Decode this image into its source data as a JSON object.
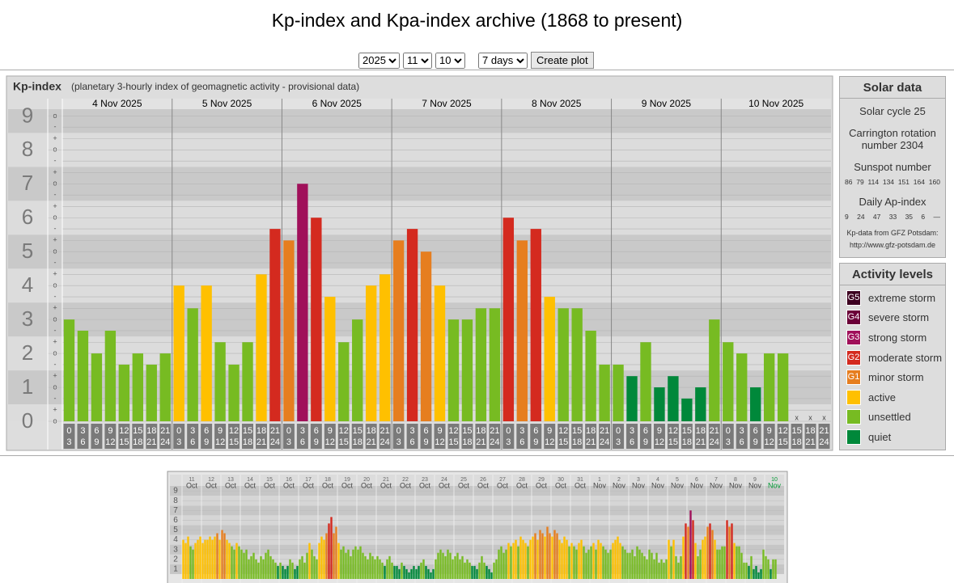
{
  "header": {
    "title": "Kp-index and Kpa-index archive (1868 to present)"
  },
  "controls": {
    "year": "2025",
    "month": "11",
    "day": "10",
    "range": "7 days",
    "button": "Create plot"
  },
  "chart_data": [
    {
      "type": "bar",
      "title": "Kp-index",
      "subtitle": "(planetary 3-hourly index of geomagnetic activity - provisional data)",
      "days": [
        "4 Nov 2025",
        "5 Nov 2025",
        "6 Nov 2025",
        "7 Nov 2025",
        "8 Nov 2025",
        "9 Nov 2025",
        "10 Nov 2025"
      ],
      "hours_from": [
        "0",
        "3",
        "6",
        "9",
        "12",
        "15",
        "18",
        "21"
      ],
      "hours_to": [
        "3",
        "6",
        "9",
        "12",
        "15",
        "18",
        "21",
        "24"
      ],
      "values": [
        3,
        2.67,
        2,
        2.67,
        1.67,
        2,
        1.67,
        2,
        4,
        3.33,
        4,
        2.33,
        1.67,
        2.33,
        4.33,
        5.67,
        5.33,
        7,
        6,
        3.67,
        2.33,
        3,
        4,
        4.33,
        5.33,
        5.67,
        5,
        4,
        3,
        3,
        3.33,
        3.33,
        6,
        5.33,
        5.67,
        3.67,
        3.33,
        3.33,
        2.67,
        1.67,
        1.67,
        1.33,
        2.33,
        1,
        1.33,
        0.67,
        1,
        3,
        2.33,
        2,
        1,
        2,
        2,
        null,
        null,
        null
      ],
      "colors": [
        "#77bb22",
        "#77bb22",
        "#77bb22",
        "#77bb22",
        "#77bb22",
        "#77bb22",
        "#77bb22",
        "#77bb22",
        "#ffc000",
        "#77bb22",
        "#ffc000",
        "#77bb22",
        "#77bb22",
        "#77bb22",
        "#ffc000",
        "#d42a1f",
        "#e67e1f",
        "#a0105a",
        "#d42a1f",
        "#ffc000",
        "#77bb22",
        "#77bb22",
        "#ffc000",
        "#ffc000",
        "#e67e1f",
        "#d42a1f",
        "#e67e1f",
        "#ffc000",
        "#77bb22",
        "#77bb22",
        "#77bb22",
        "#77bb22",
        "#d42a1f",
        "#e67e1f",
        "#d42a1f",
        "#ffc000",
        "#77bb22",
        "#77bb22",
        "#77bb22",
        "#77bb22",
        "#77bb22",
        "#00883a",
        "#77bb22",
        "#00883a",
        "#00883a",
        "#00883a",
        "#00883a",
        "#77bb22",
        "#77bb22",
        "#77bb22",
        "#00883a",
        "#77bb22",
        "#77bb22",
        null,
        null,
        null
      ],
      "missing_label": "x",
      "ylim": [
        0,
        9.2
      ],
      "yticks": [
        0,
        1,
        2,
        3,
        4,
        5,
        6,
        7,
        8,
        9
      ],
      "minor_yticks": [
        {
          "value": 0,
          "label": "o"
        },
        {
          "value": 0.33,
          "label": "+"
        },
        {
          "value": 0.67,
          "label": "-"
        },
        {
          "value": 1,
          "label": "o"
        },
        {
          "value": 1.33,
          "label": "+"
        },
        {
          "value": 1.67,
          "label": "-"
        },
        {
          "value": 2,
          "label": "o"
        },
        {
          "value": 2.33,
          "label": "+"
        },
        {
          "value": 2.67,
          "label": "-"
        },
        {
          "value": 3,
          "label": "o"
        },
        {
          "value": 3.33,
          "label": "+"
        },
        {
          "value": 3.67,
          "label": "-"
        },
        {
          "value": 4,
          "label": "o"
        },
        {
          "value": 4.33,
          "label": "+"
        },
        {
          "value": 4.67,
          "label": "-"
        },
        {
          "value": 5,
          "label": "o"
        },
        {
          "value": 5.33,
          "label": "+"
        },
        {
          "value": 5.67,
          "label": "-"
        },
        {
          "value": 6,
          "label": "o"
        },
        {
          "value": 6.33,
          "label": "+"
        },
        {
          "value": 6.67,
          "label": "-"
        },
        {
          "value": 7,
          "label": "o"
        },
        {
          "value": 7.33,
          "label": "+"
        },
        {
          "value": 7.67,
          "label": "-"
        },
        {
          "value": 8,
          "label": "o"
        },
        {
          "value": 8.33,
          "label": "+"
        },
        {
          "value": 8.67,
          "label": "-"
        },
        {
          "value": 9,
          "label": "o"
        }
      ]
    },
    {
      "type": "bar",
      "days": [
        {
          "day": "11",
          "month": "Oct"
        },
        {
          "day": "12",
          "month": "Oct"
        },
        {
          "day": "13",
          "month": "Oct"
        },
        {
          "day": "14",
          "month": "Oct"
        },
        {
          "day": "15",
          "month": "Oct"
        },
        {
          "day": "16",
          "month": "Oct"
        },
        {
          "day": "17",
          "month": "Oct"
        },
        {
          "day": "18",
          "month": "Oct"
        },
        {
          "day": "19",
          "month": "Oct"
        },
        {
          "day": "20",
          "month": "Oct"
        },
        {
          "day": "21",
          "month": "Oct"
        },
        {
          "day": "22",
          "month": "Oct"
        },
        {
          "day": "23",
          "month": "Oct"
        },
        {
          "day": "24",
          "month": "Oct"
        },
        {
          "day": "25",
          "month": "Oct"
        },
        {
          "day": "26",
          "month": "Oct"
        },
        {
          "day": "27",
          "month": "Oct"
        },
        {
          "day": "28",
          "month": "Oct"
        },
        {
          "day": "29",
          "month": "Oct"
        },
        {
          "day": "30",
          "month": "Oct"
        },
        {
          "day": "31",
          "month": "Oct"
        },
        {
          "day": "1",
          "month": "Nov"
        },
        {
          "day": "2",
          "month": "Nov"
        },
        {
          "day": "3",
          "month": "Nov"
        },
        {
          "day": "4",
          "month": "Nov"
        },
        {
          "day": "5",
          "month": "Nov"
        },
        {
          "day": "6",
          "month": "Nov"
        },
        {
          "day": "7",
          "month": "Nov"
        },
        {
          "day": "8",
          "month": "Nov"
        },
        {
          "day": "9",
          "month": "Nov"
        },
        {
          "day": "10",
          "month": "Nov"
        }
      ],
      "values": [
        4,
        3.67,
        4.33,
        3.33,
        3,
        3.67,
        4,
        4.33,
        3.67,
        4,
        4,
        4.33,
        4,
        4.33,
        4.67,
        4,
        5,
        4.67,
        4,
        3.67,
        3.33,
        3,
        3.67,
        3.33,
        3,
        2.67,
        3,
        2,
        2.33,
        2.67,
        2,
        1.67,
        2.33,
        2,
        2.67,
        3,
        2.33,
        2,
        1.67,
        1.33,
        1.67,
        1.33,
        1,
        1.33,
        2,
        1.67,
        1,
        1.33,
        2,
        2.33,
        1.67,
        2.67,
        3.67,
        3,
        2.33,
        2,
        3.67,
        4.33,
        4,
        4.67,
        5.67,
        6.33,
        4.67,
        5.33,
        3.67,
        3,
        3.33,
        2.67,
        3,
        2.33,
        3,
        3.33,
        3,
        3.33,
        2.67,
        2.33,
        2,
        2.67,
        2.33,
        2,
        2.33,
        2,
        1.67,
        1.33,
        2,
        2.33,
        1.67,
        1.33,
        1.33,
        1,
        1.67,
        1.33,
        1,
        0.67,
        1,
        1.33,
        1,
        1.33,
        1.67,
        2,
        1.33,
        1,
        0.67,
        1,
        2,
        2.67,
        3,
        2.67,
        2.33,
        3,
        2.67,
        2,
        2.33,
        2.67,
        2,
        2.33,
        1.67,
        2,
        1.67,
        1.33,
        1.33,
        1,
        1.67,
        2.33,
        1.67,
        1.33,
        1,
        0.67,
        1.67,
        2,
        3,
        3.33,
        2.67,
        3,
        3.67,
        3.33,
        3.67,
        4,
        3.33,
        4.33,
        4,
        3.67,
        3.33,
        4,
        4.33,
        4.67,
        4,
        5,
        4.67,
        4.33,
        5.33,
        4.67,
        4.33,
        5,
        4.67,
        4,
        3.67,
        4.33,
        4,
        3.33,
        3.67,
        3.33,
        3,
        3.67,
        4,
        3.33,
        2.67,
        3,
        3.33,
        3.67,
        3,
        4,
        3.67,
        3.33,
        3,
        2.67,
        3,
        3.67,
        4,
        4.33,
        3.67,
        3.33,
        3,
        2.67,
        2.67,
        3,
        2.33,
        3.33,
        3,
        2.67,
        2.33,
        2,
        3,
        2.67,
        2,
        2.67,
        1.67,
        2,
        1.67,
        2,
        4,
        3.33,
        4,
        2.33,
        1.67,
        2.33,
        4.33,
        5.67,
        5.33,
        7,
        6,
        3.67,
        2.33,
        3,
        4,
        4.33,
        5.33,
        5.67,
        5,
        4,
        3,
        3,
        3.33,
        3.33,
        6,
        5.33,
        5.67,
        3.67,
        3.33,
        3.33,
        2.67,
        1.67,
        1.67,
        1.33,
        2.33,
        1,
        1.33,
        0.67,
        1,
        3,
        2.33,
        2,
        1,
        2,
        2,
        null,
        null,
        null
      ],
      "colors": [
        "#ffc000",
        "#ffc000",
        "#ffc000",
        "#77bb22",
        "#77bb22",
        "#ffc000",
        "#ffc000",
        "#ffc000",
        "#ffc000",
        "#ffc000",
        "#ffc000",
        "#ffc000",
        "#ffc000",
        "#ffc000",
        "#e67e1f",
        "#ffc000",
        "#e67e1f",
        "#e67e1f",
        "#ffc000",
        "#ffc000",
        "#77bb22",
        "#77bb22",
        "#ffc000",
        "#77bb22",
        "#77bb22",
        "#77bb22",
        "#77bb22",
        "#77bb22",
        "#77bb22",
        "#77bb22",
        "#77bb22",
        "#77bb22",
        "#77bb22",
        "#77bb22",
        "#77bb22",
        "#77bb22",
        "#77bb22",
        "#77bb22",
        "#77bb22",
        "#00883a",
        "#77bb22",
        "#00883a",
        "#00883a",
        "#00883a",
        "#77bb22",
        "#77bb22",
        "#00883a",
        "#00883a",
        "#77bb22",
        "#77bb22",
        "#77bb22",
        "#77bb22",
        "#ffc000",
        "#77bb22",
        "#77bb22",
        "#77bb22",
        "#ffc000",
        "#ffc000",
        "#ffc000",
        "#e67e1f",
        "#d42a1f",
        "#d42a1f",
        "#e67e1f",
        "#e67e1f",
        "#ffc000",
        "#77bb22",
        "#77bb22",
        "#77bb22",
        "#77bb22",
        "#77bb22",
        "#77bb22",
        "#77bb22",
        "#77bb22",
        "#77bb22",
        "#77bb22",
        "#77bb22",
        "#77bb22",
        "#77bb22",
        "#77bb22",
        "#77bb22",
        "#77bb22",
        "#77bb22",
        "#77bb22",
        "#00883a",
        "#77bb22",
        "#77bb22",
        "#77bb22",
        "#00883a",
        "#00883a",
        "#00883a",
        "#77bb22",
        "#00883a",
        "#00883a",
        "#00883a",
        "#00883a",
        "#00883a",
        "#00883a",
        "#00883a",
        "#77bb22",
        "#77bb22",
        "#00883a",
        "#00883a",
        "#00883a",
        "#00883a",
        "#77bb22",
        "#77bb22",
        "#77bb22",
        "#77bb22",
        "#77bb22",
        "#77bb22",
        "#77bb22",
        "#77bb22",
        "#77bb22",
        "#77bb22",
        "#77bb22",
        "#77bb22",
        "#77bb22",
        "#77bb22",
        "#77bb22",
        "#00883a",
        "#00883a",
        "#00883a",
        "#77bb22",
        "#77bb22",
        "#77bb22",
        "#00883a",
        "#00883a",
        "#00883a",
        "#77bb22",
        "#77bb22",
        "#77bb22",
        "#77bb22",
        "#77bb22",
        "#77bb22",
        "#ffc000",
        "#77bb22",
        "#ffc000",
        "#ffc000",
        "#77bb22",
        "#ffc000",
        "#ffc000",
        "#ffc000",
        "#77bb22",
        "#ffc000",
        "#ffc000",
        "#e67e1f",
        "#ffc000",
        "#e67e1f",
        "#e67e1f",
        "#ffc000",
        "#e67e1f",
        "#e67e1f",
        "#ffc000",
        "#e67e1f",
        "#e67e1f",
        "#ffc000",
        "#ffc000",
        "#ffc000",
        "#ffc000",
        "#77bb22",
        "#ffc000",
        "#77bb22",
        "#77bb22",
        "#ffc000",
        "#ffc000",
        "#77bb22",
        "#77bb22",
        "#77bb22",
        "#77bb22",
        "#ffc000",
        "#77bb22",
        "#ffc000",
        "#ffc000",
        "#77bb22",
        "#77bb22",
        "#77bb22",
        "#77bb22",
        "#ffc000",
        "#ffc000",
        "#ffc000",
        "#ffc000",
        "#77bb22",
        "#77bb22",
        "#77bb22",
        "#77bb22",
        "#77bb22",
        "#77bb22",
        "#77bb22",
        "#77bb22",
        "#77bb22",
        "#77bb22",
        "#77bb22",
        "#77bb22",
        "#77bb22",
        "#77bb22",
        "#77bb22",
        "#77bb22",
        "#77bb22",
        "#77bb22",
        "#77bb22",
        "#ffc000",
        "#77bb22",
        "#ffc000",
        "#77bb22",
        "#77bb22",
        "#77bb22",
        "#ffc000",
        "#d42a1f",
        "#e67e1f",
        "#a0105a",
        "#d42a1f",
        "#ffc000",
        "#77bb22",
        "#77bb22",
        "#ffc000",
        "#ffc000",
        "#e67e1f",
        "#d42a1f",
        "#e67e1f",
        "#ffc000",
        "#77bb22",
        "#77bb22",
        "#77bb22",
        "#77bb22",
        "#d42a1f",
        "#e67e1f",
        "#d42a1f",
        "#ffc000",
        "#77bb22",
        "#77bb22",
        "#77bb22",
        "#77bb22",
        "#77bb22",
        "#00883a",
        "#77bb22",
        "#00883a",
        "#00883a",
        "#00883a",
        "#00883a",
        "#77bb22",
        "#77bb22",
        "#77bb22",
        "#00883a",
        "#77bb22",
        "#77bb22",
        null,
        null,
        null
      ],
      "ylim": [
        0,
        9.5
      ],
      "yticks": [
        1,
        2,
        3,
        4,
        5,
        6,
        7,
        8,
        9
      ]
    }
  ],
  "solar_data": {
    "title": "Solar data",
    "solar_cycle": "Solar cycle 25",
    "carrington": "Carrington rotation number 2304",
    "sunspot_title": "Sunspot number",
    "sunspot_numbers": [
      86,
      79,
      114,
      134,
      151,
      164,
      160
    ],
    "ap_title": "Daily Ap-index",
    "ap_values": [
      9,
      24,
      47,
      33,
      35,
      6,
      "—"
    ],
    "source": "Kp-data from GFZ Potsdam:",
    "url": "http://www.gfz-potsdam.de"
  },
  "activity_levels": {
    "title": "Activity levels",
    "levels": [
      {
        "badge": "G5",
        "name": "extreme storm",
        "color": "#3d0020"
      },
      {
        "badge": "G4",
        "name": "severe storm",
        "color": "#6b0038"
      },
      {
        "badge": "G3",
        "name": "strong storm",
        "color": "#a0105a"
      },
      {
        "badge": "G2",
        "name": "moderate storm",
        "color": "#d42a1f"
      },
      {
        "badge": "G1",
        "name": "minor storm",
        "color": "#e67e1f"
      },
      {
        "name": "active",
        "color": "#ffc000"
      },
      {
        "name": "unsettled",
        "color": "#77bb22"
      },
      {
        "name": "quiet",
        "color": "#00883a"
      }
    ]
  }
}
